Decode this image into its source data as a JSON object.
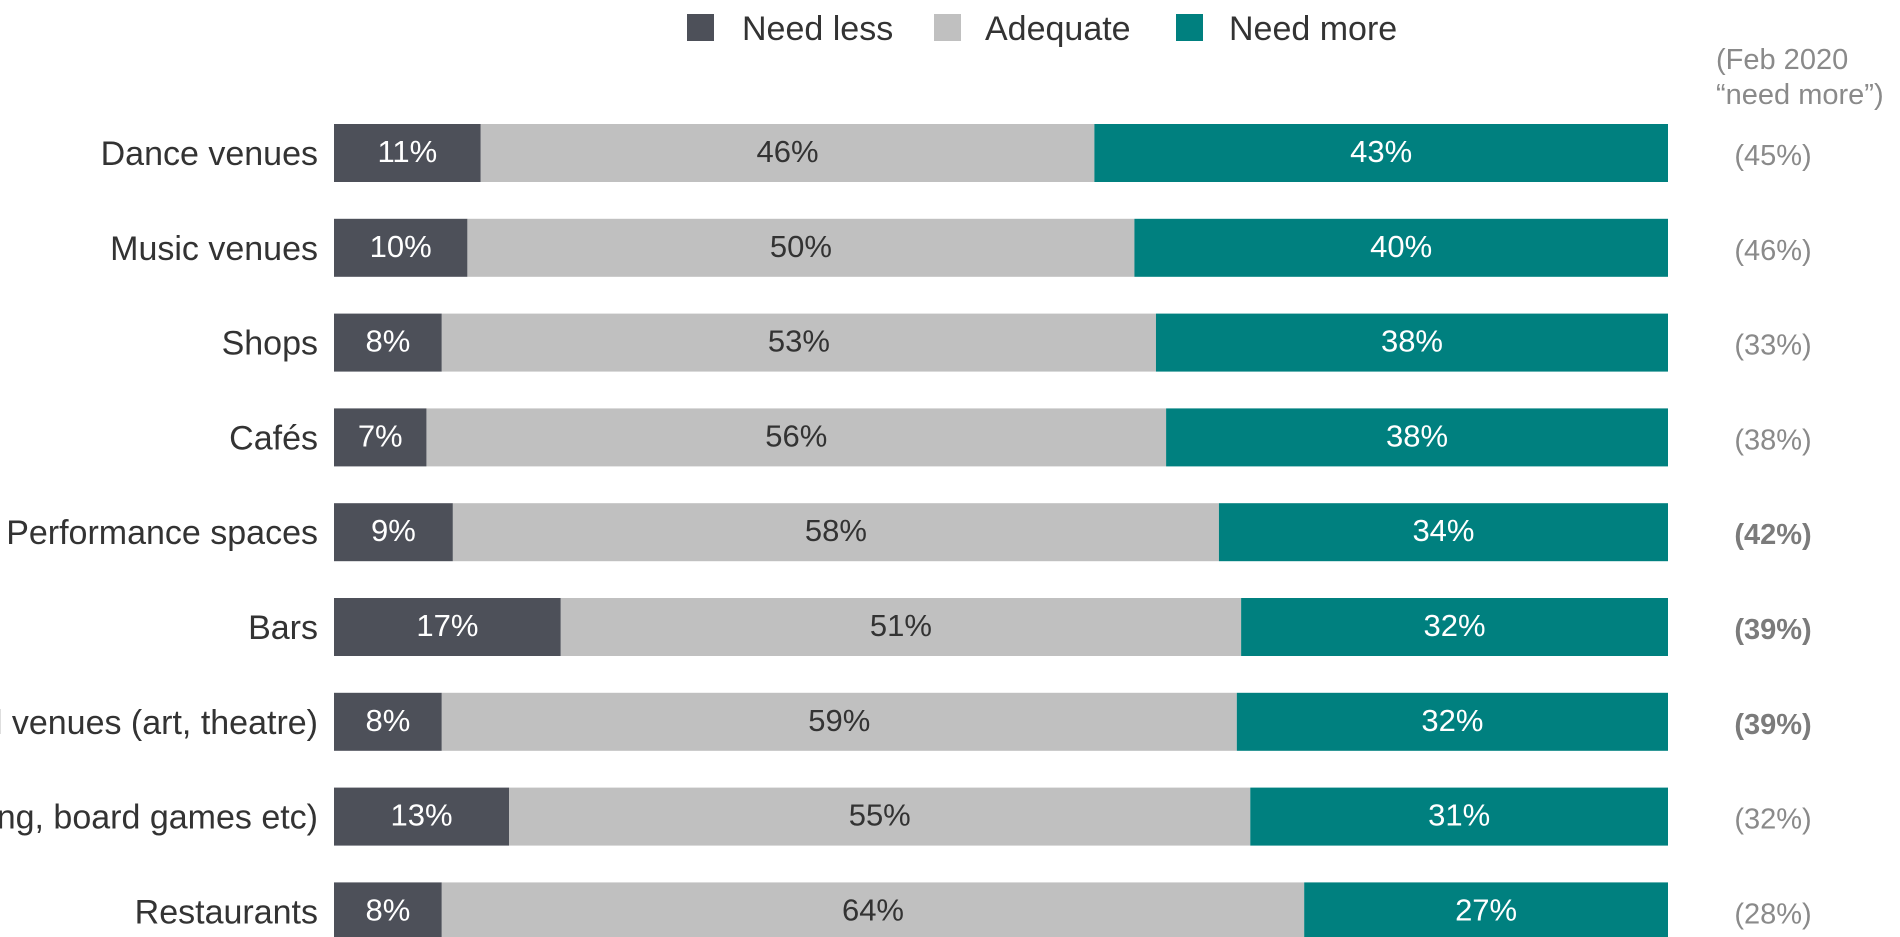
{
  "chart_data": {
    "type": "bar",
    "orientation": "horizontal",
    "stacked": true,
    "percent_stacked": true,
    "categories": [
      "Dance venues",
      "Music venues",
      "Shops",
      "Cafés",
      "Performance spaces",
      "Bars",
      "l venues (art, theatre)",
      "ing, board games etc)",
      "Restaurants"
    ],
    "series": [
      {
        "name": "Need less",
        "color": "#4d5059",
        "values": [
          11,
          10,
          8,
          7,
          9,
          17,
          8,
          13,
          8
        ],
        "labels": [
          "11%",
          "10%",
          "8%",
          "7%",
          "9%",
          "17%",
          "8%",
          "13%",
          "8%"
        ]
      },
      {
        "name": "Adequate",
        "color": "#c0c0c0",
        "values": [
          46,
          50,
          53,
          56,
          58,
          51,
          59,
          55,
          64
        ],
        "labels": [
          "46%",
          "50%",
          "53%",
          "56%",
          "58%",
          "51%",
          "59%",
          "55%",
          "64%"
        ]
      },
      {
        "name": "Need more",
        "color": "#00807f",
        "values": [
          43,
          40,
          38,
          38,
          34,
          32,
          32,
          31,
          27
        ],
        "labels": [
          "43%",
          "40%",
          "38%",
          "38%",
          "34%",
          "32%",
          "32%",
          "31%",
          "27%"
        ]
      }
    ],
    "legend_position": "top-center",
    "grid": false,
    "comparison": {
      "header": [
        "(Feb 2020",
        "“need more”)"
      ],
      "labels": [
        "(45%)",
        "(46%)",
        "(33%)",
        "(38%)",
        "(42%)",
        "(39%)",
        "(39%)",
        "(32%)",
        "(28%)"
      ],
      "bold": [
        false,
        false,
        false,
        false,
        true,
        true,
        true,
        false,
        false
      ]
    }
  }
}
